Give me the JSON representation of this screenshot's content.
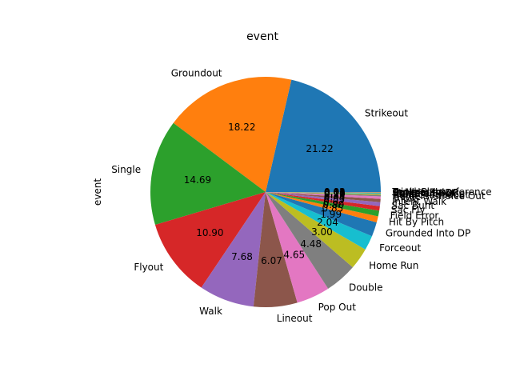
{
  "chart_data": {
    "type": "pie",
    "title": "event",
    "ylabel": "event",
    "slices": [
      {
        "label": "Strikeout",
        "value": 21.22,
        "pct_label": "21.22",
        "color": "#1f77b4"
      },
      {
        "label": "Groundout",
        "value": 18.22,
        "pct_label": "18.22",
        "color": "#ff7f0e"
      },
      {
        "label": "Single",
        "value": 14.69,
        "pct_label": "14.69",
        "color": "#2ca02c"
      },
      {
        "label": "Flyout",
        "value": 10.9,
        "pct_label": "10.90",
        "color": "#d62728"
      },
      {
        "label": "Walk",
        "value": 7.68,
        "pct_label": "7.68",
        "color": "#9467bd"
      },
      {
        "label": "Lineout",
        "value": 6.07,
        "pct_label": "6.07",
        "color": "#8c564b"
      },
      {
        "label": "Pop Out",
        "value": 4.65,
        "pct_label": "4.65",
        "color": "#e377c2"
      },
      {
        "label": "Double",
        "value": 4.48,
        "pct_label": "4.48",
        "color": "#7f7f7f"
      },
      {
        "label": "Home Run",
        "value": 3.0,
        "pct_label": "3.00",
        "color": "#bcbd22"
      },
      {
        "label": "Forceout",
        "value": 2.04,
        "pct_label": "2.04",
        "color": "#17becf"
      },
      {
        "label": "Grounded Into DP",
        "value": 1.99,
        "pct_label": "1.99",
        "color": "#1f77b4"
      },
      {
        "label": "Hit By Pitch",
        "value": 0.85,
        "pct_label": "0.85",
        "color": "#ff7f0e"
      },
      {
        "label": "Field Error",
        "value": 0.8,
        "pct_label": "0.80",
        "color": "#2ca02c"
      },
      {
        "label": "Sac Fly",
        "value": 0.62,
        "pct_label": "0.62",
        "color": "#d62728"
      },
      {
        "label": "Sac Bunt",
        "value": 0.55,
        "pct_label": "0.55",
        "color": "#9467bd"
      },
      {
        "label": "Intent Walk",
        "value": 0.45,
        "pct_label": "0.45",
        "color": "#8c564b"
      },
      {
        "label": "Triple",
        "value": 0.35,
        "pct_label": "0.35",
        "color": "#e377c2"
      },
      {
        "label": "Fielders Choice Out",
        "value": 0.2,
        "pct_label": "0.20",
        "color": "#7f7f7f"
      },
      {
        "label": "Bunt Groundout",
        "value": 0.15,
        "pct_label": "0.15",
        "color": "#bcbd22"
      },
      {
        "label": "Fielders Choice",
        "value": 0.1,
        "pct_label": "0.10",
        "color": "#17becf"
      },
      {
        "label": "Bunt Pop Out",
        "value": 0.05,
        "pct_label": "0.05",
        "color": "#1f77b4"
      },
      {
        "label": "Strikeout - DP",
        "value": 0.04,
        "pct_label": "0.04",
        "color": "#ff7f0e"
      },
      {
        "label": "Double Play",
        "value": 0.03,
        "pct_label": "0.03",
        "color": "#2ca02c"
      },
      {
        "label": "Catcher Interference",
        "value": 0.02,
        "pct_label": "0.02",
        "color": "#d62728"
      },
      {
        "label": "Triple Play",
        "value": 0.01,
        "pct_label": "0.01",
        "color": "#9467bd"
      }
    ]
  }
}
